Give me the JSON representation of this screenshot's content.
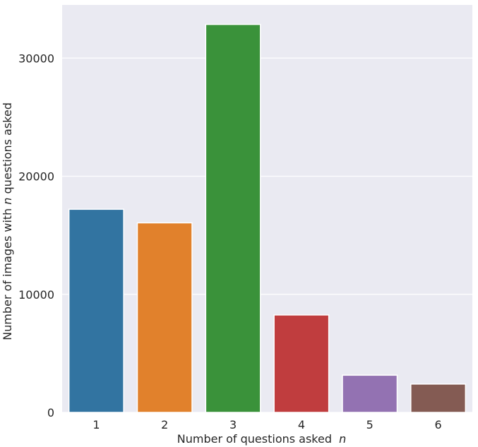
{
  "chart_data": {
    "type": "bar",
    "title": "",
    "xlabel": "Number of questions asked",
    "xlabel_var": "n",
    "ylabel_parts": [
      "Number of images with ",
      "n",
      " questions asked"
    ],
    "categories": [
      "1",
      "2",
      "3",
      "4",
      "5",
      "6"
    ],
    "values": [
      17200,
      16050,
      32850,
      8250,
      3150,
      2400
    ],
    "colors": [
      "#3274a1",
      "#e1812c",
      "#3a923a",
      "#c03d3e",
      "#9372b2",
      "#845b53"
    ],
    "ylim": [
      0,
      34500
    ],
    "yticks": [
      0,
      10000,
      20000,
      30000
    ],
    "ytick_labels": [
      "0",
      "10000",
      "20000",
      "30000"
    ],
    "grid": true,
    "background": "#eaeaf2"
  }
}
